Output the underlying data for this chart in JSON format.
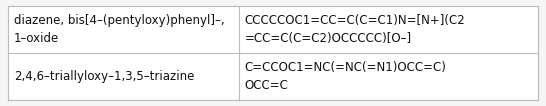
{
  "rows": [
    {
      "name": "diazene, bis[4–(pentyloxy)phenyl]–,\n1–oxide",
      "smiles": "CCCCCOC1=CC=C(C=C1)N=[N+](C2\n=CC=C(C=C2)OCCCCC)[O–]"
    },
    {
      "name": "2,4,6–triallyloxy–1,3,5–triazine",
      "smiles": "C=CCOC1=NC(=NC(=N1)OCC=C)\nOCC=C"
    }
  ],
  "col_split": 0.435,
  "bg_color": "#f5f5f5",
  "cell_bg": "#ffffff",
  "border_color": "#bbbbbb",
  "text_color": "#111111",
  "font_size": 8.5,
  "figwidth": 5.46,
  "figheight": 1.06,
  "dpi": 100
}
